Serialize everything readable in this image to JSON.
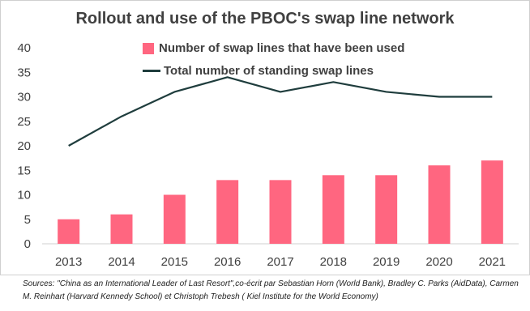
{
  "chart_data": {
    "type": "bar",
    "title": "Rollout and use of the PBOC's swap line network",
    "categories": [
      "2013",
      "2014",
      "2015",
      "2016",
      "2017",
      "2018",
      "2019",
      "2020",
      "2021"
    ],
    "series": [
      {
        "name": "Number of swap lines that have been used",
        "type": "bar",
        "color": "#ff6680",
        "values": [
          5,
          6,
          10,
          13,
          13,
          14,
          14,
          16,
          17
        ]
      },
      {
        "name": "Total number of standing swap lines",
        "type": "line",
        "color": "#1f3d3d",
        "values": [
          20,
          26,
          31,
          34,
          31,
          33,
          31,
          30,
          30
        ]
      }
    ],
    "ylim": [
      0,
      40
    ],
    "yticks": [
      0,
      5,
      10,
      15,
      20,
      25,
      30,
      35,
      40
    ],
    "xlabel": "",
    "ylabel": "",
    "grid": false,
    "legend_position": "top-center"
  },
  "source_note": "Sources: \"China as an International Leader of Last Resort\",co-écrit par Sebastian Horn (World Bank), Bradley C. Parks (AidData), Carmen M. Reinhart (Harvard Kennedy School) et Christoph Trebesh ( Kiel Institute for the World Economy)"
}
